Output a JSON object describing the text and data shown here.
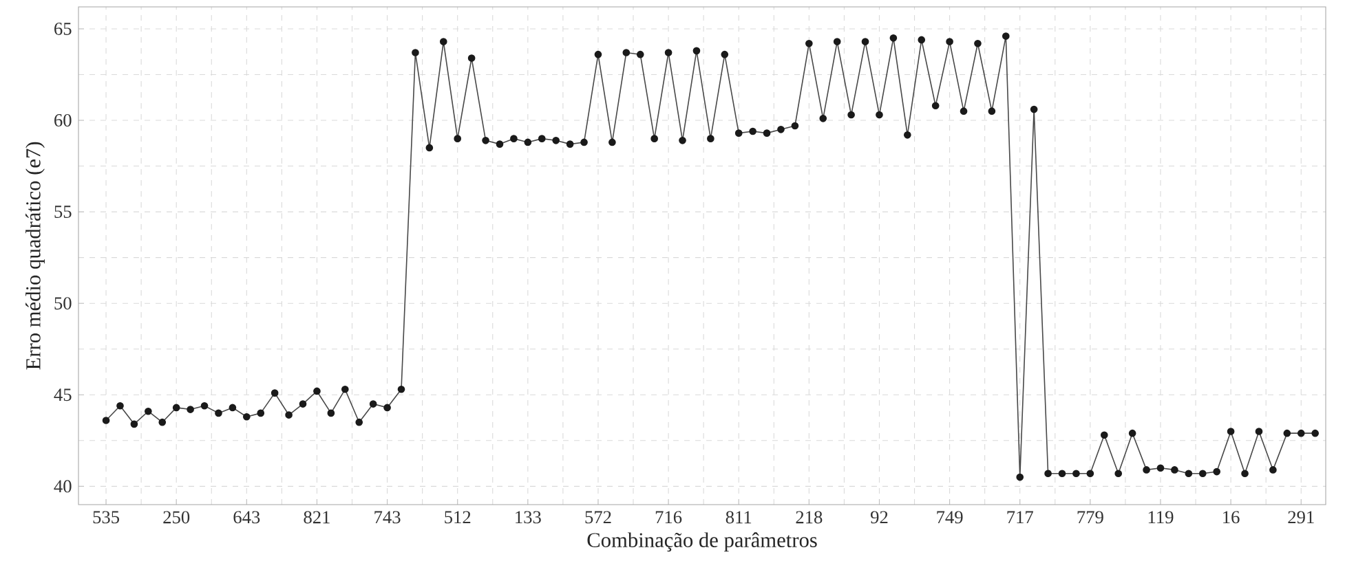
{
  "chart_data": {
    "type": "line",
    "xlabel": "Combinação de parâmetros",
    "ylabel": "Erro médio quadrático (e7)",
    "categories": [
      "535",
      null,
      null,
      null,
      null,
      "250",
      null,
      null,
      null,
      null,
      "643",
      null,
      null,
      null,
      null,
      "821",
      null,
      null,
      null,
      null,
      "743",
      null,
      null,
      null,
      null,
      "512",
      null,
      null,
      null,
      null,
      "133",
      null,
      null,
      null,
      null,
      "572",
      null,
      null,
      null,
      null,
      "716",
      null,
      null,
      null,
      null,
      "811",
      null,
      null,
      null,
      null,
      "218",
      null,
      null,
      null,
      null,
      "92",
      null,
      null,
      null,
      null,
      "749",
      null,
      null,
      null,
      null,
      "717",
      null,
      null,
      null,
      null,
      "779",
      null,
      null,
      null,
      null,
      "119",
      null,
      null,
      null,
      null,
      "16",
      null,
      null,
      null,
      null,
      "291",
      null
    ],
    "series": [
      {
        "color": "#1a1a1a",
        "values": [
          43.6,
          44.4,
          43.4,
          44.1,
          43.5,
          44.3,
          44.2,
          44.4,
          44.0,
          44.3,
          43.8,
          44.0,
          45.1,
          43.9,
          44.5,
          45.2,
          44.0,
          45.3,
          43.5,
          44.5,
          44.3,
          45.3,
          63.7,
          58.5,
          64.3,
          59.0,
          63.4,
          58.9,
          58.7,
          59.0,
          58.8,
          59.0,
          58.9,
          58.7,
          58.8,
          63.6,
          58.8,
          63.7,
          63.6,
          59.0,
          63.7,
          58.9,
          63.8,
          59.0,
          63.6,
          59.3,
          59.4,
          59.3,
          59.5,
          59.7,
          64.2,
          60.1,
          64.3,
          60.3,
          64.3,
          60.3,
          64.5,
          59.2,
          64.4,
          60.8,
          64.3,
          60.5,
          64.2,
          60.5,
          64.6,
          40.5,
          60.6,
          40.7,
          40.7,
          40.7,
          40.7,
          42.8,
          40.7,
          42.9,
          40.9,
          41.0,
          40.9,
          40.7,
          40.7,
          40.8,
          43.0,
          40.7,
          43.0,
          40.9,
          42.9,
          42.9,
          42.9
        ]
      }
    ],
    "ylim": [
      39,
      66.2
    ],
    "yticks": [
      40,
      45,
      50,
      55,
      60,
      65
    ],
    "grid": true,
    "marker": "circle",
    "line_style": "solid"
  }
}
